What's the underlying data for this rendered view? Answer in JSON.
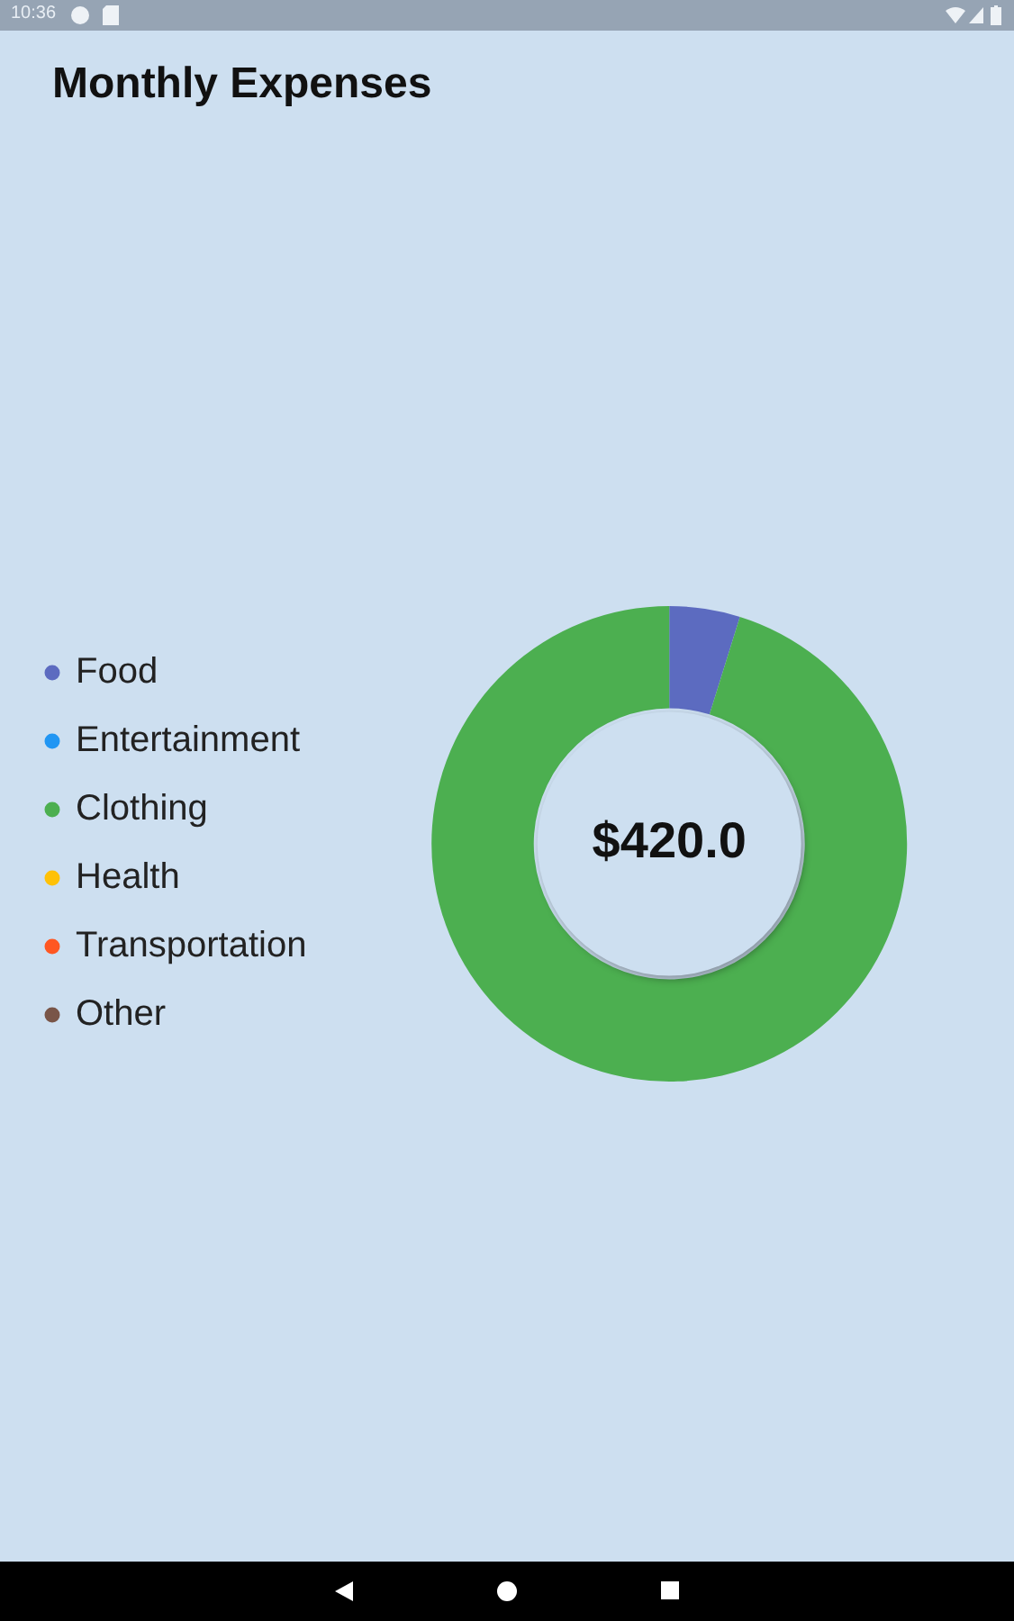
{
  "chart_data": {
    "type": "donut",
    "title": "Monthly Expenses",
    "categories": [
      "Food",
      "Entertainment",
      "Clothing",
      "Health",
      "Transportation",
      "Other"
    ],
    "values": [
      4.8,
      0,
      95.2,
      0,
      0,
      0
    ],
    "colors": [
      "#5c6bc0",
      "#2196f3",
      "#4caf50",
      "#ffc107",
      "#ff5722",
      "#795548"
    ],
    "legend": "left",
    "annotations": [
      "$420.0",
      "10:36"
    ]
  }
}
